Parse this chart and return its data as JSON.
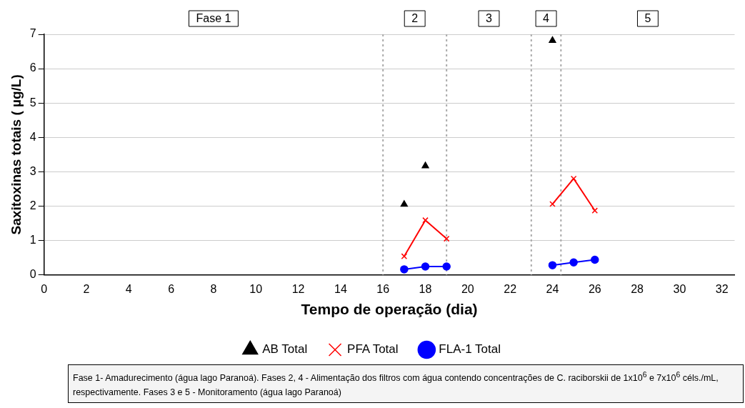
{
  "chart_data": {
    "type": "line",
    "xlabel": "Tempo de operação (dia)",
    "ylabel": "Saxitoxinas totais ( µg/L)",
    "xlim": [
      0,
      32.6
    ],
    "xticks": [
      0,
      2,
      4,
      6,
      8,
      10,
      12,
      14,
      16,
      18,
      20,
      22,
      24,
      26,
      28,
      30,
      32
    ],
    "ylim": [
      0,
      7
    ],
    "yticks": [
      0,
      1,
      2,
      3,
      4,
      5,
      6,
      7
    ],
    "grid": "y",
    "legend": "bottom",
    "series": [
      {
        "name": "AB Total",
        "type": "scatter",
        "marker": "triangle",
        "color": "#000000",
        "x": [
          17,
          18,
          24
        ],
        "values": [
          2.05,
          3.17,
          6.82
        ]
      },
      {
        "name": "PFA Total",
        "type": "line",
        "marker": "cross",
        "color": "#ff0000",
        "x": [
          17,
          18,
          19,
          21,
          24,
          25,
          26
        ],
        "values": [
          0.54,
          1.59,
          1.05,
          null,
          2.06,
          2.8,
          1.87
        ]
      },
      {
        "name": "FLA-1 Total",
        "type": "line",
        "marker": "circle",
        "color": "#0000ff",
        "x": [
          17,
          18,
          19,
          21,
          24,
          25,
          26
        ],
        "values": [
          0.16,
          0.24,
          0.24,
          null,
          0.28,
          0.36,
          0.44
        ]
      }
    ],
    "ref_lines": [
      {
        "axis": "x",
        "value": 16,
        "line_style": "dotted",
        "color": "#aaaaaa"
      },
      {
        "axis": "x",
        "value": 19,
        "line_style": "dotted",
        "color": "#aaaaaa"
      },
      {
        "axis": "x",
        "value": 23,
        "line_style": "dotted",
        "color": "#aaaaaa"
      },
      {
        "axis": "x",
        "value": 24.4,
        "line_style": "dotted",
        "color": "#aaaaaa"
      }
    ],
    "annotations": [
      "Fase 1",
      "2",
      "3",
      "4",
      "5",
      "Fase 1- Amadurecimento (água lago Paranoá). Fases 2, 4 - Alimentação dos filtros com água contendo concentrações de C. raciborskii de 1x10$^{6}$ e 7x10$^{6}$ céls./mL, respectivamente. Fases 3 e 5 - Monitoramento (água lago Paranoá)"
    ]
  }
}
